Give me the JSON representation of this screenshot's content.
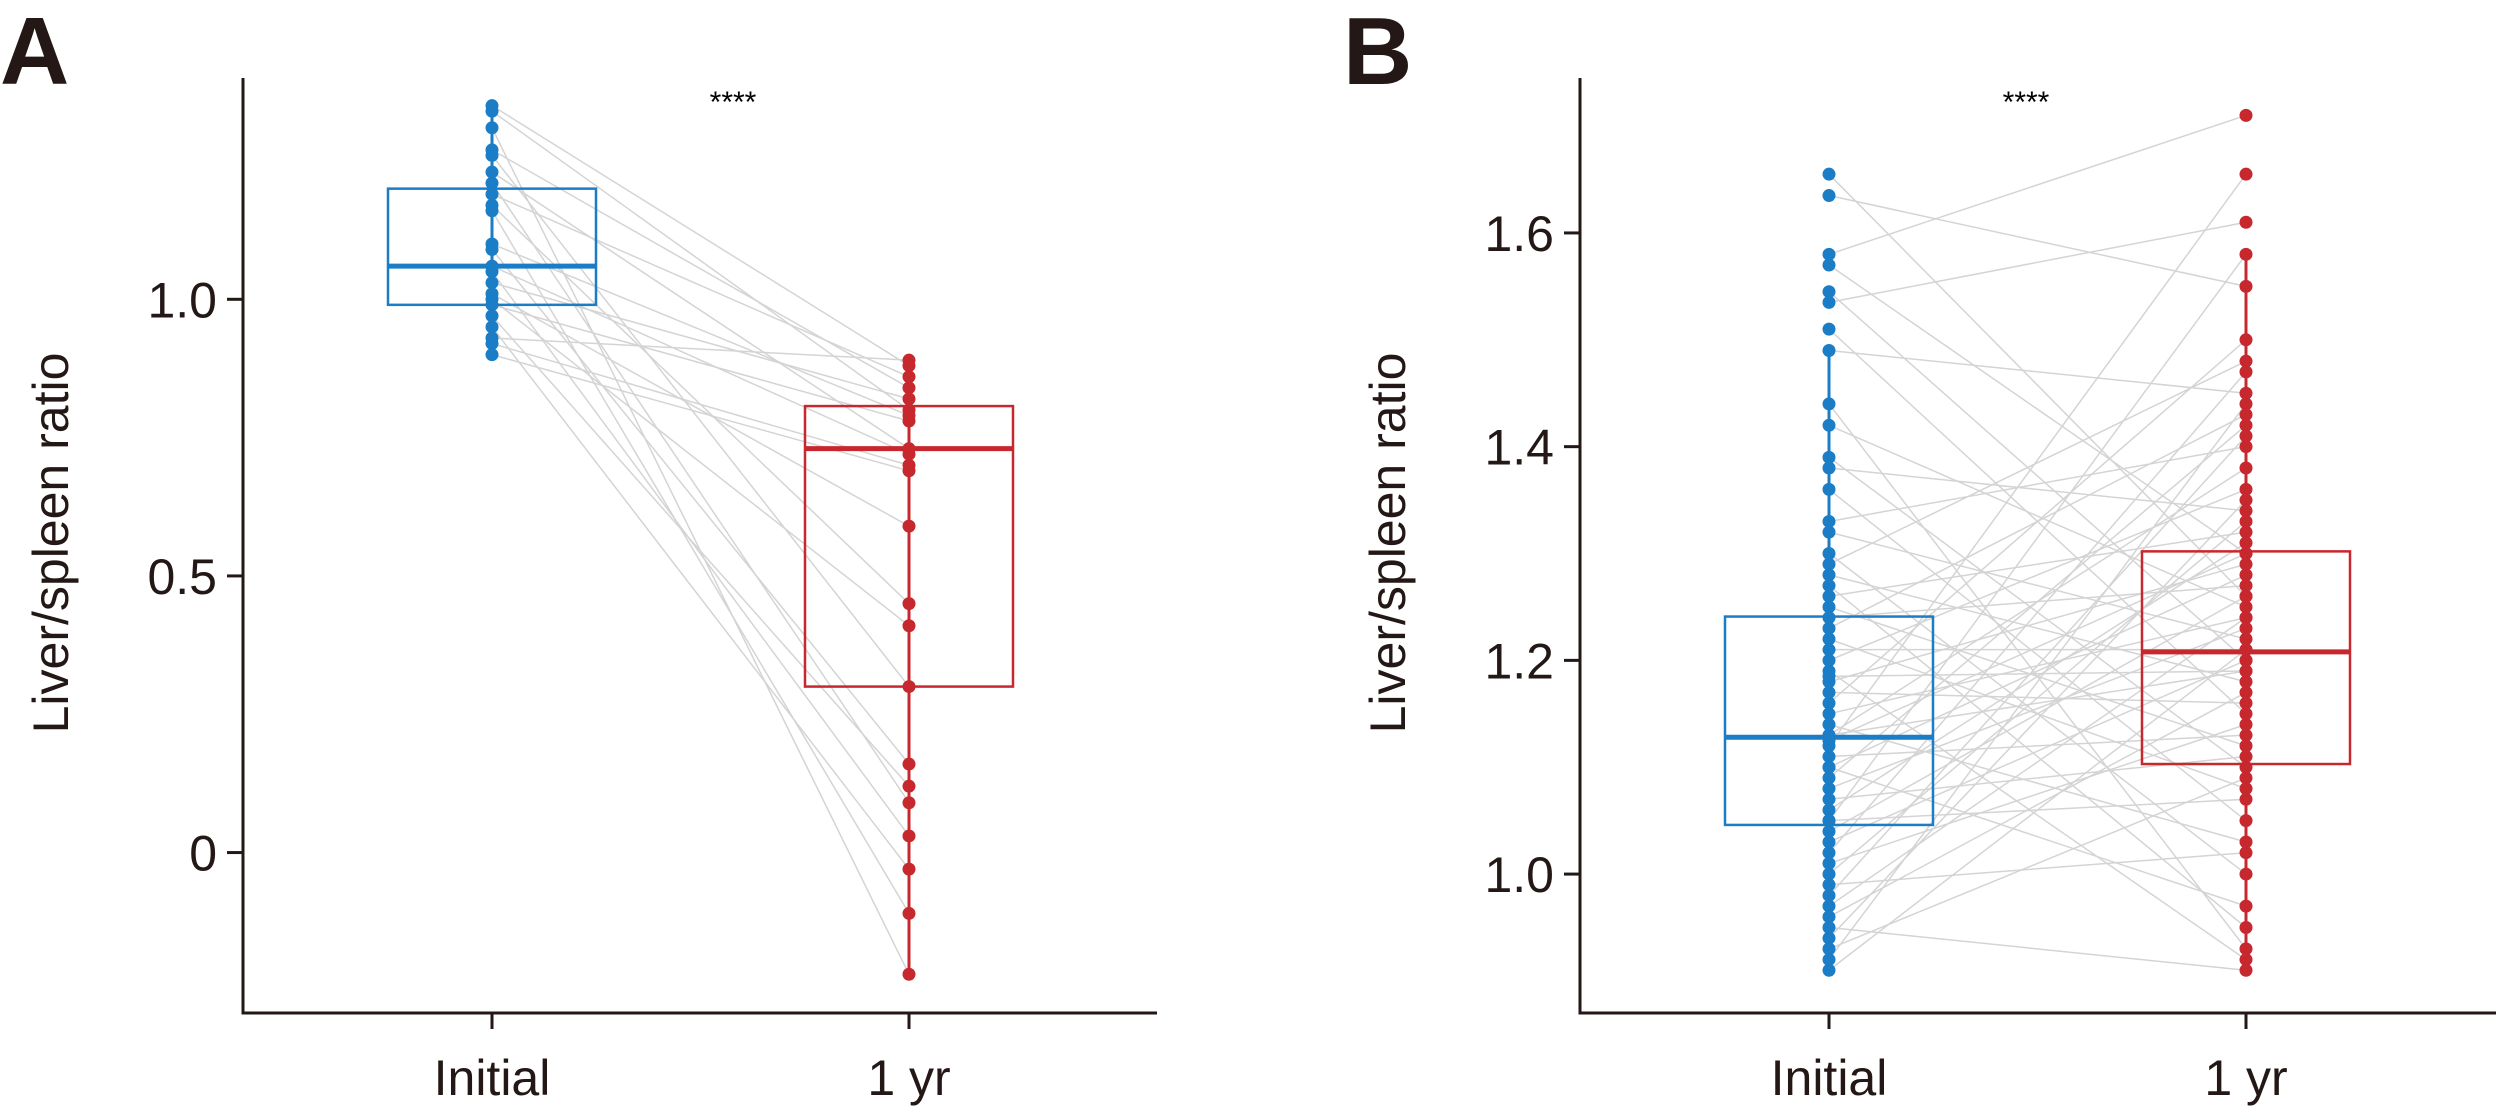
{
  "colors": {
    "initial": "#1a7dc6",
    "one_year": "#c6282e",
    "pair_line": "#d4d4d4",
    "axis": "#231815"
  },
  "chart_data": [
    {
      "panel": "A",
      "type": "box+paired-points",
      "ylabel": "Liver/spleen ratio",
      "categories": [
        "Initial",
        "1 yr"
      ],
      "significance": "****",
      "ylim": [
        -0.29,
        1.4
      ],
      "yticks": [
        0,
        0.5,
        1.0
      ],
      "ytick_labels": [
        "0",
        "0.5",
        "1.0"
      ],
      "boxes": [
        {
          "q1": 0.99,
          "median": 1.06,
          "q3": 1.2,
          "whisker_low": 0.9,
          "whisker_high": 1.35
        },
        {
          "q1": 0.3,
          "median": 0.73,
          "q3": 0.807,
          "whisker_low": -0.22,
          "whisker_high": 0.89
        }
      ],
      "initial": [
        1.35,
        1.34,
        1.31,
        1.27,
        1.26,
        1.23,
        1.21,
        1.19,
        1.17,
        1.16,
        1.1,
        1.09,
        1.06,
        1.05,
        1.03,
        1.01,
        1.0,
        0.99,
        0.97,
        0.95,
        0.93,
        0.92,
        0.9
      ],
      "one_year": [
        0.88,
        0.8,
        -0.22,
        0.84,
        0.3,
        0.73,
        0.09,
        0.86,
        0.45,
        -0.11,
        0.79,
        0.16,
        0.72,
        0.03,
        0.82,
        0.59,
        0.41,
        0.78,
        0.12,
        -0.03,
        0.89,
        0.7,
        0.69
      ]
    },
    {
      "panel": "B",
      "type": "box+paired-points",
      "ylabel": "Liver/spleen ratio",
      "categories": [
        "Initial",
        "1 yr"
      ],
      "significance": "****",
      "ylim": [
        0.87,
        1.745
      ],
      "yticks": [
        1.0,
        1.2,
        1.4,
        1.6
      ],
      "ytick_labels": [
        "1.0",
        "1.2",
        "1.4",
        "1.6"
      ],
      "boxes": [
        {
          "q1": 1.046,
          "median": 1.128,
          "q3": 1.241,
          "whisker_low": 0.91,
          "whisker_high": 1.492
        },
        {
          "q1": 1.103,
          "median": 1.208,
          "q3": 1.302,
          "whisker_low": 0.91,
          "whisker_high": 1.583
        }
      ],
      "initial": [
        1.655,
        1.635,
        1.58,
        1.57,
        1.545,
        1.535,
        1.51,
        1.49,
        1.44,
        1.42,
        1.39,
        1.38,
        1.36,
        1.33,
        1.32,
        1.3,
        1.29,
        1.28,
        1.27,
        1.26,
        1.25,
        1.24,
        1.23,
        1.22,
        1.21,
        1.2,
        1.19,
        1.18,
        1.17,
        1.16,
        1.15,
        1.14,
        1.13,
        1.13,
        1.12,
        1.11,
        1.1,
        1.1,
        1.09,
        1.08,
        1.07,
        1.06,
        1.05,
        1.05,
        1.04,
        1.03,
        1.02,
        1.01,
        1.0,
        0.99,
        0.98,
        0.97,
        0.96,
        0.95,
        0.94,
        0.93,
        0.92,
        0.91,
        1.125,
        1.185
      ],
      "one_year": [
        1.26,
        1.55,
        1.71,
        1.3,
        1.2,
        1.61,
        1.15,
        1.45,
        0.93,
        1.25,
        1.1,
        1.34,
        1.05,
        1.4,
        1.22,
        1.0,
        1.48,
        1.18,
        0.95,
        1.32,
        1.12,
        1.27,
        1.43,
        1.08,
        1.21,
        1.36,
        0.92,
        1.29,
        1.16,
        1.5,
        1.24,
        1.03,
        1.38,
        1.19,
        1.655,
        1.13,
        1.28,
        0.97,
        1.42,
        1.23,
        1.11,
        1.31,
        1.58,
        1.07,
        1.26,
        1.2,
        1.47,
        1.14,
        1.33,
        1.02,
        1.41,
        1.24,
        1.17,
        0.91,
        1.35,
        1.09,
        1.44,
        1.21,
        1.3,
        1.19
      ]
    }
  ]
}
